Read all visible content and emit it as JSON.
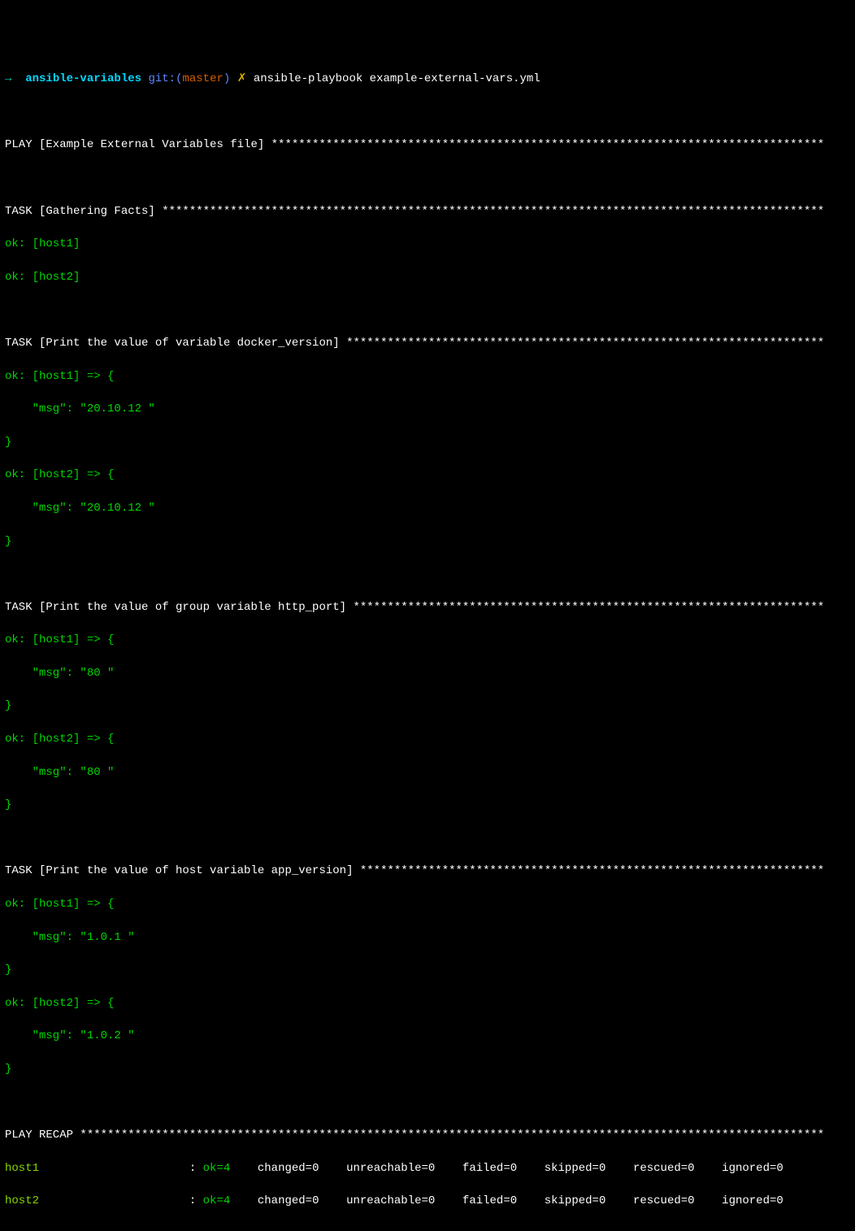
{
  "prompt": {
    "arrow": "→",
    "dir": "ansible-variables",
    "git_label": "git:",
    "paren_open": "(",
    "branch": "master",
    "paren_close": ")",
    "x": "✗",
    "command": "ansible-playbook example-external-vars.yml"
  },
  "play": {
    "header": "PLAY [Example External Variables file] *********************************************************************************"
  },
  "task_gather": {
    "header": "TASK [Gathering Facts] *************************************************************************************************",
    "host1": "ok: [host1]",
    "host2": "ok: [host2]"
  },
  "task_docker": {
    "header": "TASK [Print the value of variable docker_version] **********************************************************************",
    "h1_line1": "ok: [host1] => {",
    "h1_line2": "    \"msg\": \"20.10.12 \"",
    "h1_line3": "}",
    "h2_line1": "ok: [host2] => {",
    "h2_line2": "    \"msg\": \"20.10.12 \"",
    "h2_line3": "}"
  },
  "task_http": {
    "header": "TASK [Print the value of group variable http_port] *********************************************************************",
    "h1_line1": "ok: [host1] => {",
    "h1_line2": "    \"msg\": \"80 \"",
    "h1_line3": "}",
    "h2_line1": "ok: [host2] => {",
    "h2_line2": "    \"msg\": \"80 \"",
    "h2_line3": "}"
  },
  "task_app": {
    "header": "TASK [Print the value of host variable app_version] ********************************************************************",
    "h1_line1": "ok: [host1] => {",
    "h1_line2": "    \"msg\": \"1.0.1 \"",
    "h1_line3": "}",
    "h2_line1": "ok: [host2] => {",
    "h2_line2": "    \"msg\": \"1.0.2 \"",
    "h2_line3": "}"
  },
  "recap": {
    "header": "PLAY RECAP *************************************************************************************************************",
    "h1_name": "host1                      ",
    "h1_colon": ": ",
    "h1_ok": "ok=4   ",
    "h1_rest": " changed=0    unreachable=0    failed=0    skipped=0    rescued=0    ignored=0",
    "h2_name": "host2                      ",
    "h2_colon": ": ",
    "h2_ok": "ok=4   ",
    "h2_rest": " changed=0    unreachable=0    failed=0    skipped=0    rescued=0    ignored=0"
  }
}
